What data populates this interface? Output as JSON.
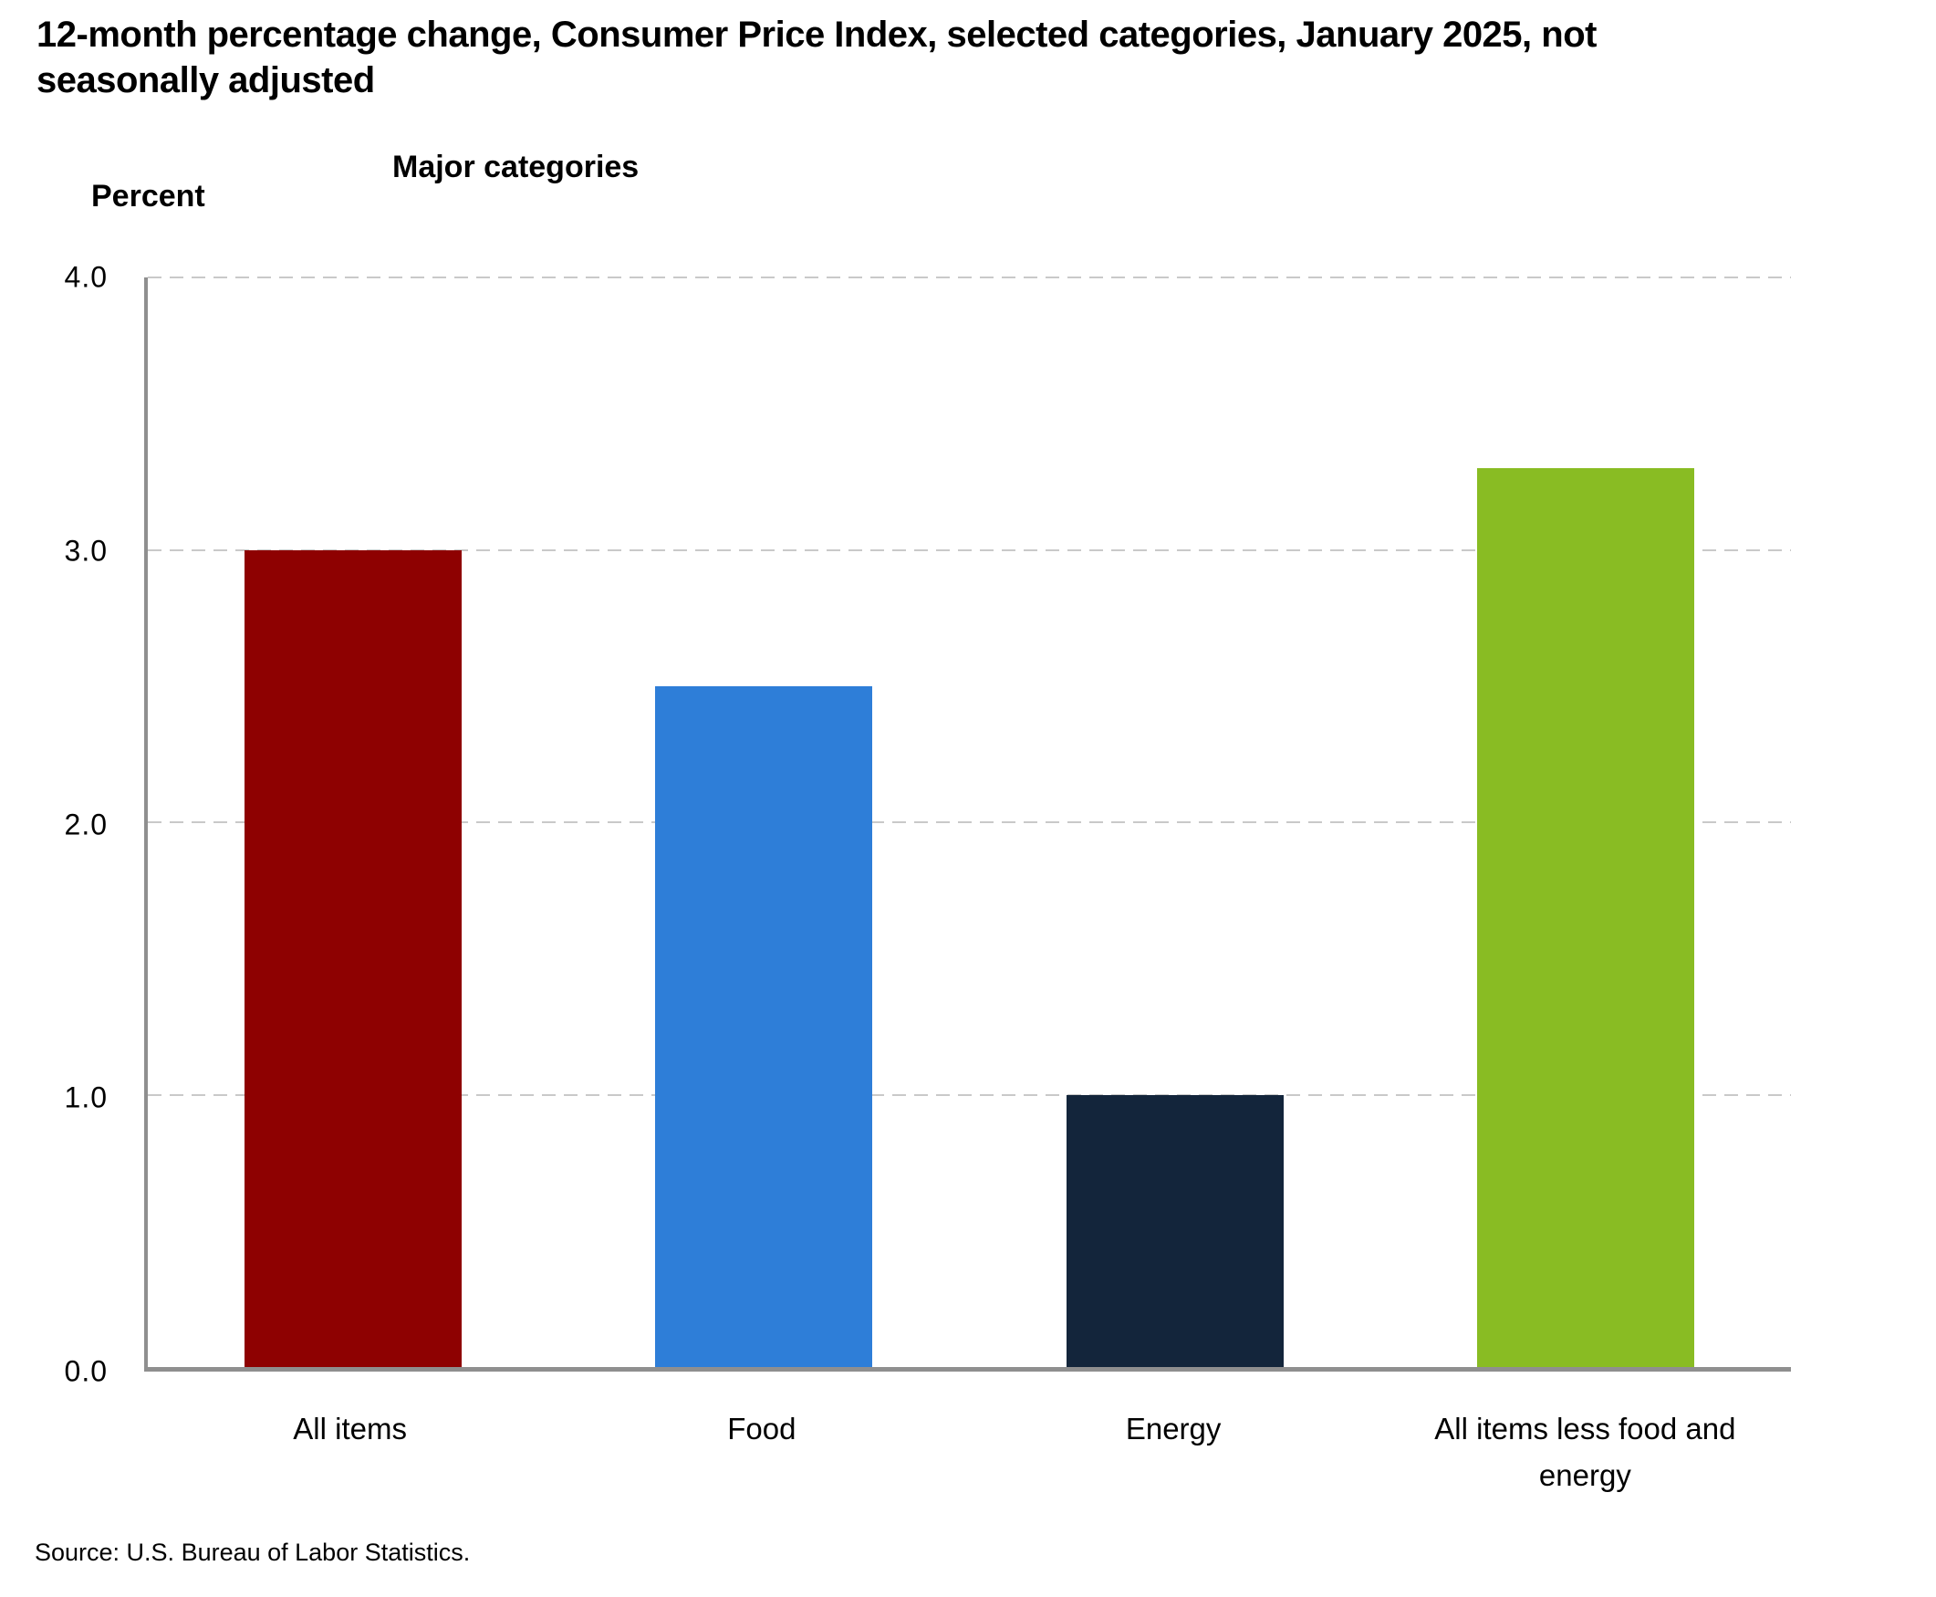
{
  "page": {
    "title": "12-month percentage change, Consumer Price Index, selected categories, January 2025, not seasonally adjusted",
    "source": "Source: U.S. Bureau of Labor Statistics."
  },
  "chart_data": {
    "type": "bar",
    "title": "Major categories",
    "ylabel": "Percent",
    "xlabel": "",
    "categories": [
      "All items",
      "Food",
      "Energy",
      "All items less food and energy"
    ],
    "values": [
      3.0,
      2.5,
      1.0,
      3.3
    ],
    "bar_colors": [
      "#8e0101",
      "#2e7ed8",
      "#13253b",
      "#89bc23"
    ],
    "ylim": [
      0.0,
      4.0
    ],
    "yticks": [
      4.0,
      3.0,
      2.0,
      1.0,
      0.0
    ],
    "ytick_labels": [
      "4.0",
      "3.0",
      "2.0",
      "1.0",
      "0.0"
    ],
    "grid": "horizontal-dashed",
    "legend": "none",
    "grid_color": "#c9c9c9",
    "axis_color": "#8f8f8f"
  }
}
